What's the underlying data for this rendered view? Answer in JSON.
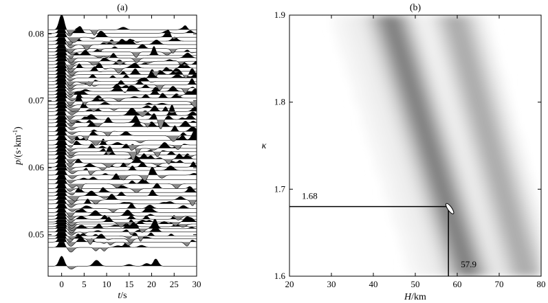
{
  "chart_data": [
    {
      "type": "line",
      "panel_label": "(a)",
      "xlabel_var": "t",
      "xlabel_unit": "/s",
      "ylabel_var": "p",
      "ylabel_unit": "/(s·km",
      "ylabel_sup": "-1",
      "ylabel_close": ")",
      "xlim": [
        -3,
        30
      ],
      "ylim": [
        0.0438,
        0.0828
      ],
      "xticks": [
        0,
        5,
        10,
        15,
        20,
        25,
        30
      ],
      "yticks": [
        0.05,
        0.06,
        0.07,
        0.08
      ],
      "ytick_labels": [
        "0.05",
        "0.06",
        "0.07",
        "0.08"
      ],
      "description_of_series": "receiver-function traces plotted by ray parameter; positive lobes filled black, negative lobes filled grey",
      "trace_ray_parameters": [
        0.0453,
        0.0481,
        0.0489,
        0.0494,
        0.0498,
        0.0504,
        0.0509,
        0.0512,
        0.0516,
        0.0519,
        0.0523,
        0.0528,
        0.0533,
        0.0539,
        0.0546,
        0.0552,
        0.0558,
        0.0563,
        0.0569,
        0.0576,
        0.0582,
        0.0589,
        0.0596,
        0.0601,
        0.0607,
        0.0613,
        0.0619,
        0.0624,
        0.0629,
        0.0634,
        0.0641,
        0.0648,
        0.0654,
        0.0661,
        0.0667,
        0.0672,
        0.0678,
        0.0684,
        0.0689,
        0.0694,
        0.0699,
        0.0704,
        0.0709,
        0.0714,
        0.0719,
        0.0724,
        0.0729,
        0.0734,
        0.0739,
        0.0744,
        0.0749,
        0.0754,
        0.0759,
        0.0764,
        0.0768,
        0.0773,
        0.0778,
        0.0784,
        0.0789,
        0.0795,
        0.0801,
        0.0806
      ]
    },
    {
      "type": "heatmap",
      "panel_label": "(b)",
      "xlabel_var": "H",
      "xlabel_unit": "/km",
      "ylabel": "κ",
      "xlim": [
        20,
        80
      ],
      "ylim": [
        1.6,
        1.9
      ],
      "xticks": [
        20,
        30,
        40,
        50,
        60,
        70,
        80
      ],
      "yticks": [
        1.6,
        1.7,
        1.8,
        1.9
      ],
      "ytick_labels": [
        "1.6",
        "1.7",
        "1.8",
        "1.9"
      ],
      "colormap": "white-to-dark-grey",
      "best_fit": {
        "H": 57.9,
        "kappa": 1.68
      },
      "annotations": {
        "kappa_label": "1.68",
        "H_label": "57.9"
      },
      "description_of_series": "H-kappa stacking amplitude; two main dark bands decreasing in H as kappa increases"
    }
  ]
}
